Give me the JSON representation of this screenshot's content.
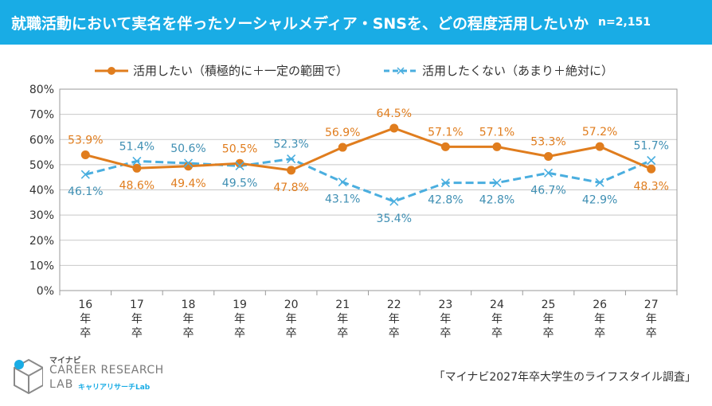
{
  "header": {
    "title": "就職活動において実名を伴ったソーシャルメディア・SNSを、どの程度活用したいか",
    "sample": "n=2,151"
  },
  "legend": {
    "series1": "活用したい（積極的に＋一定の範囲で）",
    "series2": "活用したくない（あまり＋絶対に）"
  },
  "colors": {
    "title_bg": "#19ace5",
    "series1": "#e07d1e",
    "series2": "#4aaedf",
    "series2_label": "#3f8fb3",
    "axis_text": "#333333",
    "grid": "#c8c8c8"
  },
  "chart_data": {
    "type": "line",
    "categories": [
      "16\n年\n卒",
      "17\n年\n卒",
      "18\n年\n卒",
      "19\n年\n卒",
      "20\n年\n卒",
      "21\n年\n卒",
      "22\n年\n卒",
      "23\n年\n卒",
      "24\n年\n卒",
      "25\n年\n卒",
      "26\n年\n卒",
      "27\n年\n卒"
    ],
    "series": [
      {
        "name": "活用したい（積極的に＋一定の範囲で）",
        "values": [
          53.9,
          48.6,
          49.4,
          50.5,
          47.8,
          56.9,
          64.5,
          57.1,
          57.1,
          53.3,
          57.2,
          48.3
        ],
        "style": "solid",
        "marker": "circle"
      },
      {
        "name": "活用したくない（あまり＋絶対に）",
        "values": [
          46.1,
          51.4,
          50.6,
          49.5,
          52.3,
          43.1,
          35.4,
          42.8,
          42.8,
          46.7,
          42.9,
          51.7
        ],
        "style": "dashed",
        "marker": "x"
      }
    ],
    "ylim": [
      0,
      80
    ],
    "yticks": [
      "0%",
      "10%",
      "20%",
      "30%",
      "40%",
      "50%",
      "60%",
      "70%",
      "80%"
    ],
    "value_suffix": "%",
    "grid": true,
    "legend_position": "top"
  },
  "footer": {
    "logo_brand": "マイナビ",
    "logo_line1": "CAREER RESEARCH",
    "logo_line2": "LAB",
    "logo_sub": "キャリアリサーチLab",
    "source": "「マイナビ2027年卒大学生のライフスタイル調査」"
  }
}
